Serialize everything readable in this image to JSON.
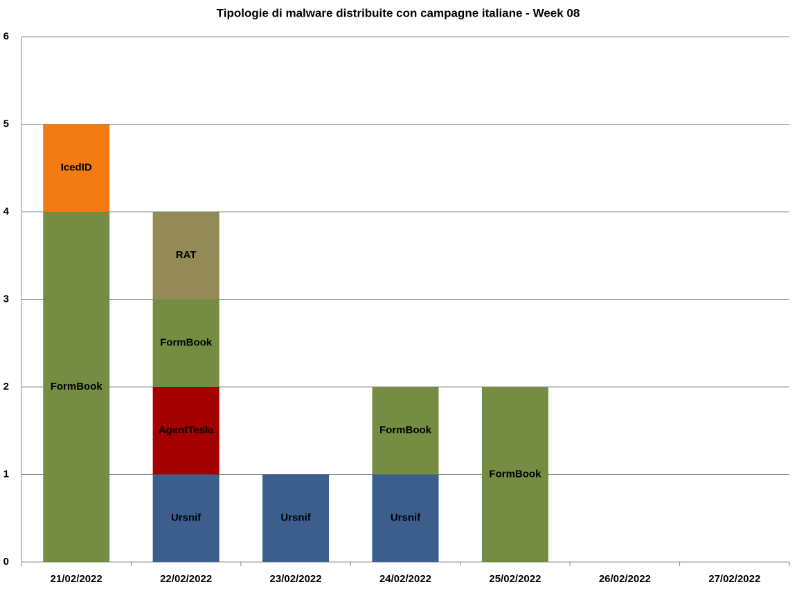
{
  "chart_data": {
    "type": "stacked_bar",
    "title": "Tipologie  di malware distribuite con campagne italiane - Week 08",
    "categories": [
      "21/02/2022",
      "22/02/2022",
      "23/02/2022",
      "24/02/2022",
      "25/02/2022",
      "26/02/2022",
      "27/02/2022"
    ],
    "series": [
      {
        "name": "Ursnif",
        "color": "#3b5e8c",
        "values": [
          0,
          1,
          1,
          1,
          0,
          0,
          0
        ]
      },
      {
        "name": "AgentTesla",
        "color": "#a30000",
        "values": [
          0,
          1,
          0,
          0,
          0,
          0,
          0
        ]
      },
      {
        "name": "FormBook",
        "color": "#748d43",
        "values": [
          4,
          1,
          0,
          1,
          2,
          0,
          0
        ]
      },
      {
        "name": "RAT",
        "color": "#948a56",
        "values": [
          0,
          1,
          0,
          0,
          0,
          0,
          0
        ]
      },
      {
        "name": "IcedID",
        "color": "#f27b13",
        "values": [
          1,
          0,
          0,
          0,
          0,
          0,
          0
        ]
      }
    ],
    "ylim": [
      0,
      6
    ],
    "yticks": [
      0,
      1,
      2,
      3,
      4,
      5,
      6
    ],
    "grid": true
  }
}
